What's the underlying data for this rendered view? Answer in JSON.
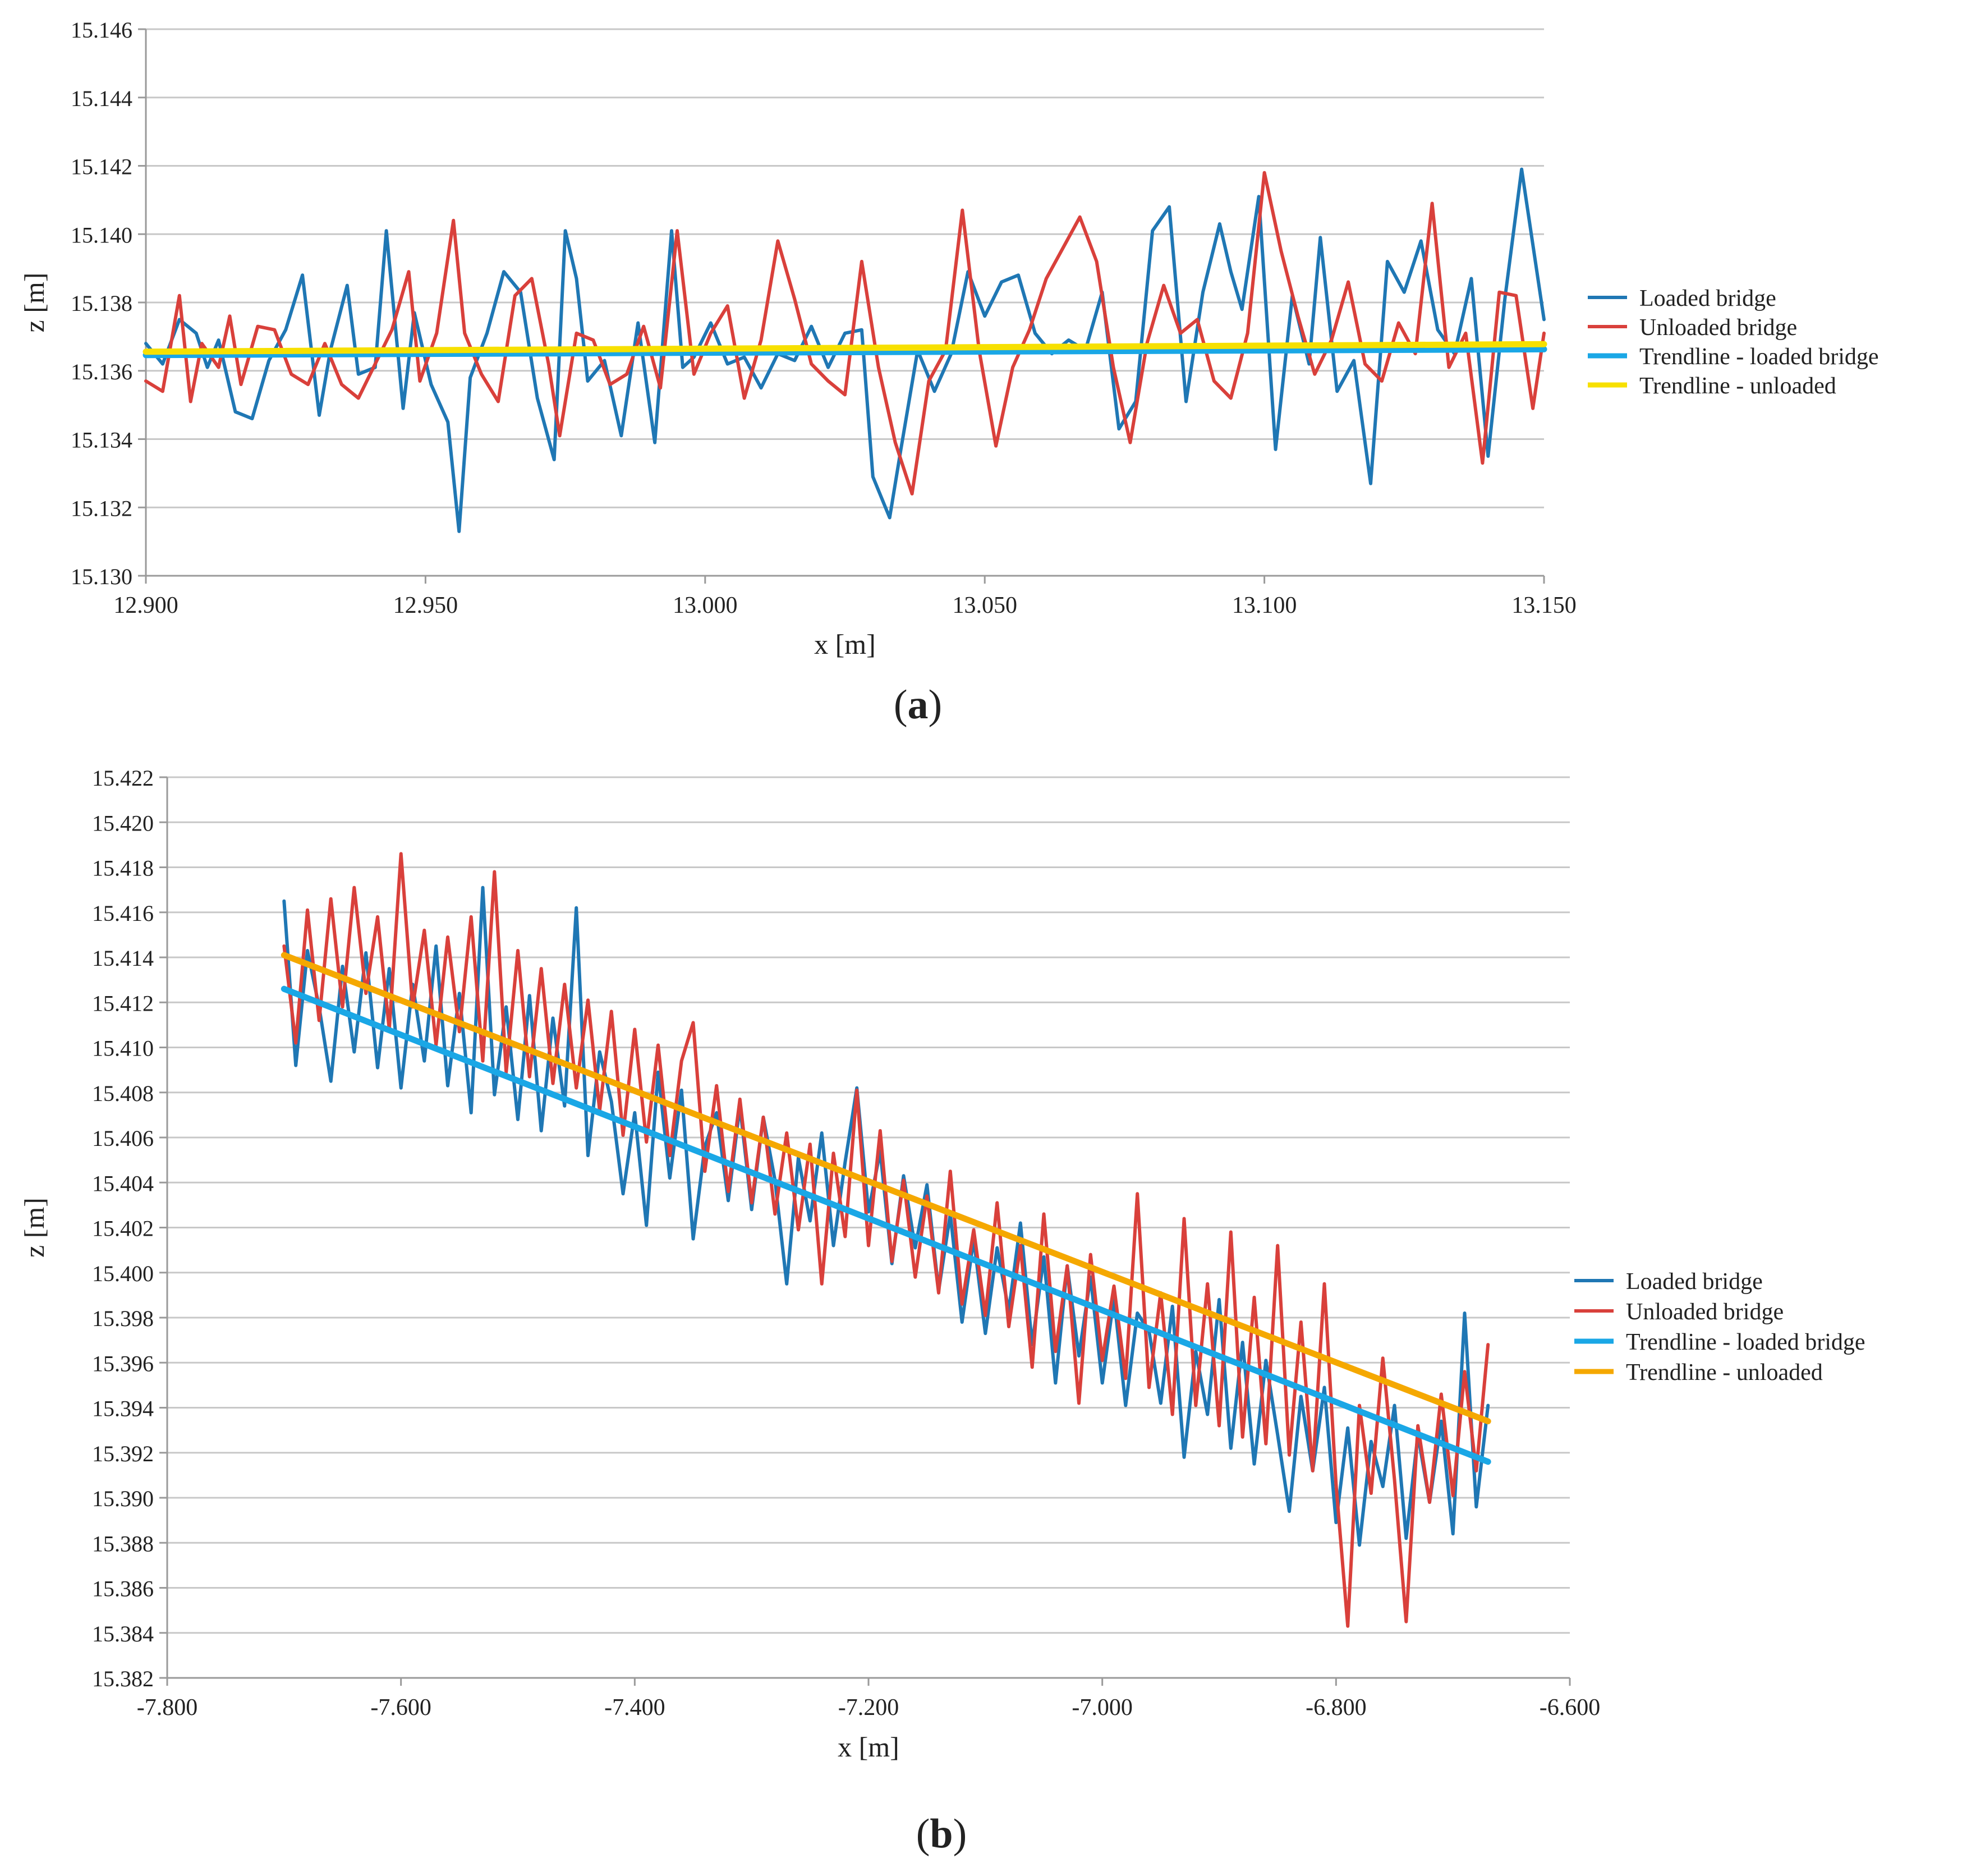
{
  "colors": {
    "loaded": "#1f77b4",
    "unloaded": "#d9403b",
    "trend_loaded": "#1aa7e6",
    "trend_unloaded": "#f7e000",
    "trend_unloaded_b": "#f5a800",
    "grid": "#c8c8c8",
    "axis": "#9a9a9a"
  },
  "chart_data": [
    {
      "type": "line",
      "panel_label_open": "(",
      "panel_label_letter": "a",
      "panel_label_close": ")",
      "xlabel": "x [m]",
      "ylabel": "z [m]",
      "xlim": [
        12.9,
        13.15
      ],
      "ylim": [
        15.13,
        15.146
      ],
      "xticks": [
        "12.900",
        "12.950",
        "13.000",
        "13.050",
        "13.100",
        "13.150"
      ],
      "yticks": [
        "15.130",
        "15.132",
        "15.134",
        "15.136",
        "15.138",
        "15.140",
        "15.142",
        "15.144",
        "15.146"
      ],
      "grid": true,
      "legend_position": "right",
      "series": [
        {
          "name": "Loaded bridge",
          "x": [
            12.9,
            12.903,
            12.906,
            12.909,
            12.911,
            12.913,
            12.916,
            12.919,
            12.922,
            12.925,
            12.928,
            12.931,
            12.933,
            12.936,
            12.938,
            12.941,
            12.943,
            12.946,
            12.948,
            12.951,
            12.954,
            12.956,
            12.958,
            12.961,
            12.964,
            12.967,
            12.97,
            12.973,
            12.975,
            12.977,
            12.979,
            12.982,
            12.985,
            12.988,
            12.991,
            12.994,
            12.996,
            12.998,
            13.001,
            13.004,
            13.007,
            13.01,
            13.013,
            13.016,
            13.019,
            13.022,
            13.025,
            13.028,
            13.03,
            13.033,
            13.035,
            13.038,
            13.041,
            13.044,
            13.047,
            13.05,
            13.053,
            13.056,
            13.059,
            13.062,
            13.065,
            13.068,
            13.071,
            13.074,
            13.077,
            13.08,
            13.083,
            13.086,
            13.089,
            13.092,
            13.094,
            13.096,
            13.099,
            13.102,
            13.105,
            13.108,
            13.11,
            13.113,
            13.116,
            13.119,
            13.122,
            13.125,
            13.128,
            13.131,
            13.134,
            13.137,
            13.14,
            13.143,
            13.146,
            13.15
          ],
          "y": [
            15.1368,
            15.1362,
            15.1375,
            15.1371,
            15.1361,
            15.1369,
            15.1348,
            15.1346,
            15.1363,
            15.1372,
            15.1388,
            15.1347,
            15.1366,
            15.1385,
            15.1359,
            15.1361,
            15.1401,
            15.1349,
            15.1377,
            15.1356,
            15.1345,
            15.1313,
            15.1358,
            15.1371,
            15.1389,
            15.1383,
            15.1352,
            15.1334,
            15.1401,
            15.1387,
            15.1357,
            15.1363,
            15.1341,
            15.1374,
            15.1339,
            15.1401,
            15.1361,
            15.1364,
            15.1374,
            15.1362,
            15.1364,
            15.1355,
            15.1365,
            15.1363,
            15.1373,
            15.1361,
            15.1371,
            15.1372,
            15.1329,
            15.1317,
            15.1337,
            15.1366,
            15.1354,
            15.1365,
            15.1389,
            15.1376,
            15.1386,
            15.1388,
            15.1371,
            15.1365,
            15.1369,
            15.1366,
            15.1383,
            15.1343,
            15.1351,
            15.1401,
            15.1408,
            15.1351,
            15.1383,
            15.1403,
            15.1389,
            15.1378,
            15.1411,
            15.1337,
            15.1382,
            15.1362,
            15.1399,
            15.1354,
            15.1363,
            15.1327,
            15.1392,
            15.1383,
            15.1398,
            15.1372,
            15.1365,
            15.1387,
            15.1335,
            15.1381,
            15.1419,
            15.1375
          ]
        },
        {
          "name": "Unloaded bridge",
          "x": [
            12.9,
            12.903,
            12.906,
            12.908,
            12.91,
            12.913,
            12.915,
            12.917,
            12.92,
            12.923,
            12.926,
            12.929,
            12.932,
            12.935,
            12.938,
            12.941,
            12.944,
            12.947,
            12.949,
            12.952,
            12.955,
            12.957,
            12.96,
            12.963,
            12.966,
            12.969,
            12.972,
            12.974,
            12.977,
            12.98,
            12.983,
            12.986,
            12.989,
            12.992,
            12.995,
            12.998,
            13.001,
            13.004,
            13.007,
            13.01,
            13.013,
            13.016,
            13.019,
            13.022,
            13.025,
            13.028,
            13.031,
            13.034,
            13.037,
            13.04,
            13.043,
            13.046,
            13.049,
            13.052,
            13.055,
            13.058,
            13.061,
            13.064,
            13.067,
            13.07,
            13.073,
            13.076,
            13.079,
            13.082,
            13.085,
            13.088,
            13.091,
            13.094,
            13.097,
            13.1,
            13.103,
            13.106,
            13.109,
            13.112,
            13.115,
            13.118,
            13.121,
            13.124,
            13.127,
            13.13,
            13.133,
            13.136,
            13.139,
            13.142,
            13.145,
            13.148,
            13.15
          ],
          "y": [
            15.1357,
            15.1354,
            15.1382,
            15.1351,
            15.1368,
            15.1361,
            15.1376,
            15.1356,
            15.1373,
            15.1372,
            15.1359,
            15.1356,
            15.1368,
            15.1356,
            15.1352,
            15.1362,
            15.1372,
            15.1389,
            15.1357,
            15.1371,
            15.1404,
            15.1371,
            15.1359,
            15.1351,
            15.1382,
            15.1387,
            15.1362,
            15.1341,
            15.1371,
            15.1369,
            15.1356,
            15.1359,
            15.1373,
            15.1355,
            15.1401,
            15.1359,
            15.1371,
            15.1379,
            15.1352,
            15.1369,
            15.1398,
            15.1381,
            15.1362,
            15.1357,
            15.1353,
            15.1392,
            15.1361,
            15.1339,
            15.1324,
            15.1357,
            15.1366,
            15.1407,
            15.1366,
            15.1338,
            15.1361,
            15.1372,
            15.1387,
            15.1396,
            15.1405,
            15.1392,
            15.1361,
            15.1339,
            15.1368,
            15.1385,
            15.1371,
            15.1375,
            15.1357,
            15.1352,
            15.1371,
            15.1418,
            15.1395,
            15.1376,
            15.1359,
            15.1369,
            15.1386,
            15.1362,
            15.1357,
            15.1374,
            15.1365,
            15.1409,
            15.1361,
            15.1371,
            15.1333,
            15.1383,
            15.1382,
            15.1349,
            15.1371
          ]
        },
        {
          "name": "Trendline - loaded bridge",
          "x": [
            12.9,
            13.15
          ],
          "y": [
            15.13646,
            15.13663
          ]
        },
        {
          "name": "Trendline - unloaded",
          "x": [
            12.9,
            13.15
          ],
          "y": [
            15.13656,
            15.13678
          ]
        }
      ]
    },
    {
      "type": "line",
      "panel_label_open": "(",
      "panel_label_letter": "b",
      "panel_label_close": ")",
      "xlabel": "x [m]",
      "ylabel": "z [m]",
      "xlim": [
        -7.8,
        -6.6
      ],
      "ylim": [
        15.382,
        15.422
      ],
      "xticks": [
        "-7.800",
        "-7.600",
        "-7.400",
        "-7.200",
        "-7.000",
        "-6.800",
        "-6.600"
      ],
      "yticks": [
        "15.382",
        "15.384",
        "15.386",
        "15.388",
        "15.390",
        "15.392",
        "15.394",
        "15.396",
        "15.398",
        "15.400",
        "15.402",
        "15.404",
        "15.406",
        "15.408",
        "15.410",
        "15.412",
        "15.414",
        "15.416",
        "15.418",
        "15.420",
        "15.422"
      ],
      "grid": true,
      "legend_position": "right",
      "series": [
        {
          "name": "Loaded bridge",
          "x": [
            -7.7,
            -7.69,
            -7.68,
            -7.67,
            -7.66,
            -7.65,
            -7.64,
            -7.63,
            -7.62,
            -7.61,
            -7.6,
            -7.59,
            -7.58,
            -7.57,
            -7.56,
            -7.55,
            -7.54,
            -7.53,
            -7.52,
            -7.51,
            -7.5,
            -7.49,
            -7.48,
            -7.47,
            -7.46,
            -7.45,
            -7.44,
            -7.43,
            -7.42,
            -7.41,
            -7.4,
            -7.39,
            -7.38,
            -7.37,
            -7.36,
            -7.35,
            -7.34,
            -7.33,
            -7.32,
            -7.31,
            -7.3,
            -7.29,
            -7.28,
            -7.27,
            -7.26,
            -7.25,
            -7.24,
            -7.23,
            -7.22,
            -7.21,
            -7.2,
            -7.19,
            -7.18,
            -7.17,
            -7.16,
            -7.15,
            -7.14,
            -7.13,
            -7.12,
            -7.11,
            -7.1,
            -7.09,
            -7.08,
            -7.07,
            -7.06,
            -7.05,
            -7.04,
            -7.03,
            -7.02,
            -7.01,
            -7.0,
            -6.99,
            -6.98,
            -6.97,
            -6.96,
            -6.95,
            -6.94,
            -6.93,
            -6.92,
            -6.91,
            -6.9,
            -6.89,
            -6.88,
            -6.87,
            -6.86,
            -6.85,
            -6.84,
            -6.83,
            -6.82,
            -6.81,
            -6.8,
            -6.79,
            -6.78,
            -6.77,
            -6.76,
            -6.75,
            -6.74,
            -6.73,
            -6.72,
            -6.71,
            -6.7,
            -6.69,
            -6.68,
            -6.67
          ],
          "y": [
            15.4165,
            15.4092,
            15.4143,
            15.4118,
            15.4085,
            15.4136,
            15.4098,
            15.4142,
            15.4091,
            15.4135,
            15.4082,
            15.4128,
            15.4094,
            15.4145,
            15.4083,
            15.4124,
            15.4071,
            15.4171,
            15.4079,
            15.4118,
            15.4068,
            15.4123,
            15.4063,
            15.4113,
            15.4074,
            15.4162,
            15.4052,
            15.4098,
            15.4076,
            15.4035,
            15.4071,
            15.4021,
            15.4089,
            15.4042,
            15.4081,
            15.4015,
            15.4056,
            15.4071,
            15.4032,
            15.4074,
            15.4028,
            15.4069,
            15.4041,
            15.3995,
            15.4051,
            15.4023,
            15.4062,
            15.4012,
            15.4049,
            15.4082,
            15.4027,
            15.4054,
            15.4004,
            15.4043,
            15.4011,
            15.4039,
            15.3992,
            15.4026,
            15.3978,
            15.4015,
            15.3973,
            15.4011,
            15.3983,
            15.4022,
            15.3968,
            15.4007,
            15.3951,
            15.4003,
            15.3963,
            15.3998,
            15.3951,
            15.3989,
            15.3941,
            15.3982,
            15.3974,
            15.3942,
            15.3985,
            15.3918,
            15.3965,
            15.3937,
            15.3988,
            15.3922,
            15.3969,
            15.3915,
            15.3961,
            15.3928,
            15.3894,
            15.3945,
            15.3912,
            15.3949,
            15.3889,
            15.3931,
            15.3879,
            15.3925,
            15.3905,
            15.3941,
            15.3882,
            15.3928,
            15.3898,
            15.3934,
            15.3884,
            15.3982,
            15.3896,
            15.3941
          ]
        },
        {
          "name": "Unloaded bridge",
          "x": [
            -7.7,
            -7.69,
            -7.68,
            -7.67,
            -7.66,
            -7.65,
            -7.64,
            -7.63,
            -7.62,
            -7.61,
            -7.6,
            -7.59,
            -7.58,
            -7.57,
            -7.56,
            -7.55,
            -7.54,
            -7.53,
            -7.52,
            -7.51,
            -7.5,
            -7.49,
            -7.48,
            -7.47,
            -7.46,
            -7.45,
            -7.44,
            -7.43,
            -7.42,
            -7.41,
            -7.4,
            -7.39,
            -7.38,
            -7.37,
            -7.36,
            -7.35,
            -7.34,
            -7.33,
            -7.32,
            -7.31,
            -7.3,
            -7.29,
            -7.28,
            -7.27,
            -7.26,
            -7.25,
            -7.24,
            -7.23,
            -7.22,
            -7.21,
            -7.2,
            -7.19,
            -7.18,
            -7.17,
            -7.16,
            -7.15,
            -7.14,
            -7.13,
            -7.12,
            -7.11,
            -7.1,
            -7.09,
            -7.08,
            -7.07,
            -7.06,
            -7.05,
            -7.04,
            -7.03,
            -7.02,
            -7.01,
            -7.0,
            -6.99,
            -6.98,
            -6.97,
            -6.96,
            -6.95,
            -6.94,
            -6.93,
            -6.92,
            -6.91,
            -6.9,
            -6.89,
            -6.88,
            -6.87,
            -6.86,
            -6.85,
            -6.84,
            -6.83,
            -6.82,
            -6.81,
            -6.8,
            -6.79,
            -6.78,
            -6.77,
            -6.76,
            -6.75,
            -6.74,
            -6.73,
            -6.72,
            -6.71,
            -6.7,
            -6.69,
            -6.68,
            -6.67
          ],
          "y": [
            15.4145,
            15.4102,
            15.4161,
            15.4112,
            15.4166,
            15.4118,
            15.4171,
            15.4124,
            15.4158,
            15.4108,
            15.4186,
            15.4118,
            15.4152,
            15.4101,
            15.4149,
            15.4107,
            15.4158,
            15.4094,
            15.4178,
            15.4089,
            15.4143,
            15.4087,
            15.4135,
            15.4084,
            15.4128,
            15.4082,
            15.4121,
            15.4072,
            15.4116,
            15.4061,
            15.4108,
            15.4058,
            15.4101,
            15.4052,
            15.4094,
            15.4111,
            15.4045,
            15.4083,
            15.4036,
            15.4077,
            15.4031,
            15.4069,
            15.4026,
            15.4062,
            15.4019,
            15.4057,
            15.3995,
            15.4053,
            15.4016,
            15.4081,
            15.4012,
            15.4063,
            15.4005,
            15.4041,
            15.3998,
            15.4034,
            15.3991,
            15.4045,
            15.3986,
            15.4019,
            15.3981,
            15.4031,
            15.3976,
            15.4012,
            15.3958,
            15.4026,
            15.3965,
            15.4003,
            15.3942,
            15.4008,
            15.3961,
            15.3994,
            15.3953,
            15.4035,
            15.3949,
            15.3991,
            15.3937,
            15.4024,
            15.3941,
            15.3995,
            15.3932,
            15.4018,
            15.3927,
            15.3989,
            15.3924,
            15.4012,
            15.3919,
            15.3978,
            15.3912,
            15.3995,
            15.3906,
            15.3843,
            15.3941,
            15.3902,
            15.3962,
            15.3908,
            15.3845,
            15.3932,
            15.3898,
            15.3946,
            15.3901,
            15.3956,
            15.3912,
            15.3968
          ]
        },
        {
          "name": "Trendline - loaded bridge",
          "x": [
            -7.7,
            -6.67
          ],
          "y": [
            15.4126,
            15.3916
          ]
        },
        {
          "name": "Trendline - unloaded",
          "x": [
            -7.7,
            -6.67
          ],
          "y": [
            15.4141,
            15.3934
          ]
        }
      ]
    }
  ]
}
